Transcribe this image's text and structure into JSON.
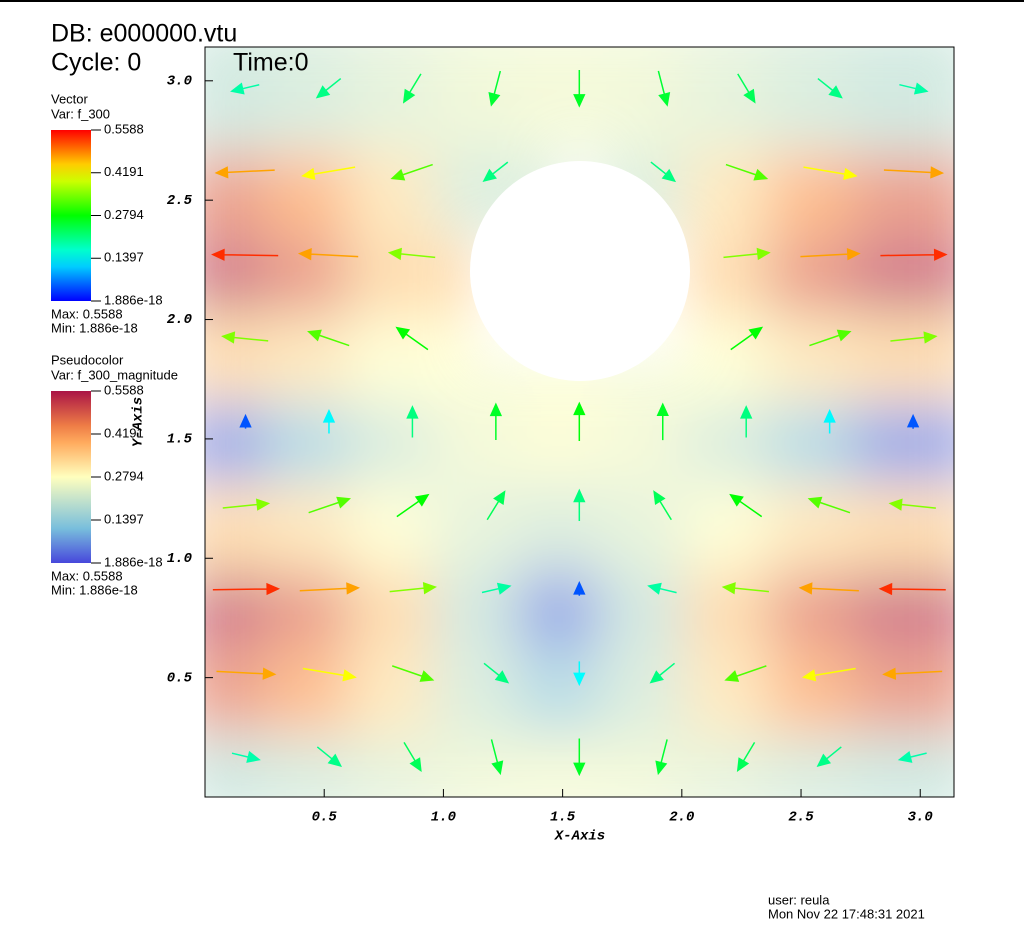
{
  "header": {
    "db": "DB: e000000.vtu",
    "cycle": "Cycle: 0",
    "time": "Time:0"
  },
  "chart_data": {
    "type": "vector_field",
    "x": [
      0.17,
      0.52,
      0.87,
      1.22,
      1.57,
      1.92,
      2.27,
      2.62,
      2.97
    ],
    "y": [
      0.17,
      0.52,
      0.87,
      1.22,
      1.57,
      1.92,
      2.27,
      2.62,
      2.97
    ],
    "u": [
      [
        0.18,
        0.159,
        0.118,
        0.063,
        0,
        -0.063,
        -0.118,
        -0.159,
        -0.18
      ],
      [
        0.467,
        0.411,
        0.306,
        0.163,
        0,
        -0.162,
        -0.305,
        -0.411,
        -0.467
      ],
      [
        0.534,
        0.47,
        0.35,
        0.186,
        0,
        -0.185,
        -0.349,
        -0.47,
        -0.534
      ],
      [
        0.35,
        0.308,
        0.229,
        0.122,
        0,
        -0.121,
        -0.228,
        -0.308,
        -0.35
      ],
      [
        0,
        0,
        0,
        0,
        0,
        0,
        0,
        0,
        0
      ],
      [
        -0.348,
        -0.306,
        -0.228,
        null,
        null,
        null,
        0.227,
        0.306,
        0.348
      ],
      [
        -0.534,
        -0.47,
        -0.35,
        null,
        null,
        null,
        0.349,
        0.47,
        0.534
      ],
      [
        -0.469,
        -0.413,
        -0.307,
        -0.164,
        null,
        0.163,
        0.307,
        0.413,
        0.469
      ],
      [
        -0.183,
        -0.161,
        -0.12,
        -0.064,
        0,
        0.063,
        0.119,
        0.161,
        0.183
      ]
    ],
    "v": [
      [
        -0.043,
        -0.129,
        -0.198,
        -0.243,
        -0.259,
        -0.244,
        -0.198,
        -0.129,
        -0.044
      ],
      [
        -0.023,
        -0.069,
        -0.106,
        -0.131,
        -0.139,
        -0.131,
        -0.106,
        -0.069,
        -0.024
      ],
      [
        0.008,
        0.023,
        0.035,
        0.043,
        0.046,
        0.044,
        0.035,
        0.023,
        0.008
      ],
      [
        0.035,
        0.105,
        0.16,
        0.197,
        0.21,
        0.198,
        0.16,
        0.105,
        0.036
      ],
      [
        0.046,
        0.137,
        0.21,
        0.258,
        0.275,
        0.259,
        0.21,
        0.137,
        0.047
      ],
      [
        0.035,
        0.105,
        0.161,
        null,
        null,
        null,
        0.161,
        0.105,
        0.036
      ],
      [
        0.008,
        0.024,
        0.036,
        null,
        null,
        null,
        0.036,
        0.024,
        0.008
      ],
      [
        -0.023,
        -0.069,
        -0.105,
        -0.129,
        null,
        -0.13,
        -0.105,
        -0.069,
        -0.024
      ],
      [
        -0.043,
        -0.129,
        -0.198,
        -0.243,
        -0.259,
        -0.244,
        -0.198,
        -0.129,
        -0.044
      ]
    ],
    "xlim": [
      0,
      3.1416
    ],
    "ylim": [
      0,
      3.1416
    ],
    "xticks": [
      0.5,
      {
        "value": 1,
        "label": "1.0"
      },
      1.5,
      {
        "value": 2,
        "label": "2.0"
      },
      2.5,
      {
        "value": 3,
        "label": "3.0"
      }
    ],
    "yticks": [
      0.5,
      {
        "value": 1,
        "label": "1.0"
      },
      1.5,
      {
        "value": 2,
        "label": "2.0"
      },
      2.5,
      {
        "value": 3,
        "label": "3.0"
      }
    ],
    "xlabel": "X-Axis",
    "ylabel": "Y-Axis",
    "legends": [
      {
        "title": "Vector",
        "var": "Var: f_300",
        "colormap": "rainbow",
        "ticks": [
          0.5588,
          0.4191,
          0.2794,
          0.1397,
          1.886e-18
        ],
        "max": "Max:  0.5588",
        "min": "Min:  1.886e-18"
      },
      {
        "title": "Pseudocolor",
        "var": "Var: f_300_magnitude",
        "colormap": "hot_desaturated",
        "ticks": [
          0.5588,
          0.4191,
          0.2794,
          0.1397,
          1.886e-18
        ],
        "max": "Max:  0.5588",
        "min": "Min:  1.886e-18"
      }
    ]
  },
  "footer": {
    "user": "user: reula",
    "date": "Mon Nov 22 17:48:31 2021"
  }
}
